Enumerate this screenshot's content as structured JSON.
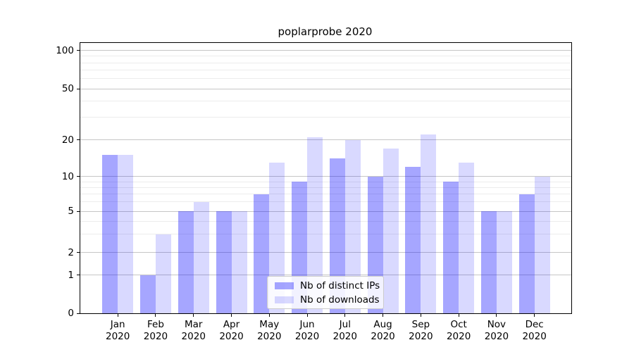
{
  "title": "poplarprobe 2020",
  "chart_data": {
    "type": "bar",
    "title": "poplarprobe 2020",
    "categories": [
      "Jan",
      "Feb",
      "Mar",
      "Apr",
      "May",
      "Jun",
      "Jul",
      "Aug",
      "Sep",
      "Oct",
      "Nov",
      "Dec"
    ],
    "category_year_line": "2020",
    "series": [
      {
        "name": "Nb of distinct IPs",
        "color_hex": "#a6a6ff",
        "base_color": "#0000ff",
        "alpha": 0.35,
        "values": [
          15,
          1,
          5,
          5,
          7,
          9,
          14,
          10,
          12,
          9,
          5,
          7
        ]
      },
      {
        "name": "Nb of downloads",
        "color_hex": "#d9d9ff",
        "base_color": "#0000ff",
        "alpha": 0.15,
        "values": [
          15,
          3,
          6,
          5,
          13,
          21,
          20,
          17,
          22,
          13,
          5,
          10
        ]
      }
    ],
    "yscale": "log-like with 0 baseline",
    "y_major_ticks": [
      0,
      1,
      2,
      5,
      10,
      20,
      50,
      100
    ],
    "y_minor_ticks": [
      3,
      4,
      6,
      7,
      8,
      9,
      30,
      40,
      60,
      70,
      80,
      90
    ],
    "ylim": [
      0,
      115
    ],
    "xlabel": "",
    "ylabel": "",
    "grid": true,
    "legend_position": "lower center"
  }
}
